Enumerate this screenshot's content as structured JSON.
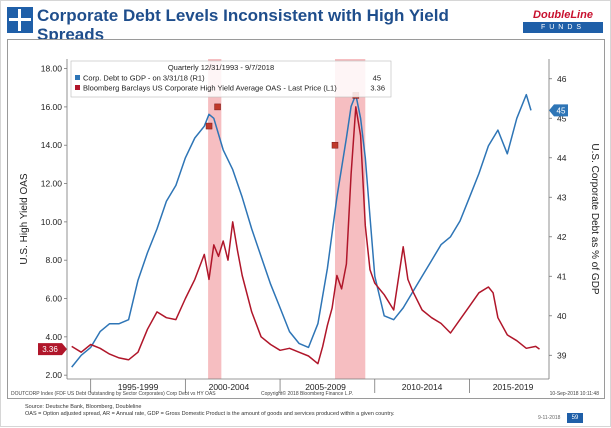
{
  "slide": {
    "title": "Corporate Debt Levels Inconsistent with High Yield Spreads",
    "logo_top": "DoubleLine",
    "logo_bottom": "FUNDS",
    "footer_source": "Source: Deutsche Bank, Bloomberg, Doubleline",
    "footer_defs": "OAS = Option adjusted spread, AR = Annual rate, GDP = Gross Domestic Product is the amount of goods and services produced within a given country.",
    "page_ref": "9-11-2018",
    "page_number": "59"
  },
  "chart_data": {
    "type": "line",
    "legend_header": "Quarterly 12/31/1993 - 9/7/2018",
    "x_range": [
      1993.75,
      2019.2
    ],
    "x_period_labels": [
      {
        "label": "1995-1999",
        "x": 1997.5
      },
      {
        "label": "2000-2004",
        "x": 2002.3
      },
      {
        "label": "2005-2009",
        "x": 2007.4
      },
      {
        "label": "2010-2014",
        "x": 2012.5
      },
      {
        "label": "2015-2019",
        "x": 2017.3
      }
    ],
    "y_left": {
      "label": "U.S. High Yield OAS",
      "range": [
        1.8,
        18.5
      ],
      "ticks": [
        "2.00",
        "4.00",
        "6.00",
        "8.00",
        "10.00",
        "12.00",
        "14.00",
        "16.00",
        "18.00"
      ]
    },
    "y_right": {
      "label": "U.S. Corporate Debt as % of GDP",
      "range": [
        38.4,
        46.5
      ],
      "ticks": [
        "39",
        "40",
        "41",
        "42",
        "43",
        "44",
        "45",
        "46"
      ]
    },
    "shaded_periods": [
      [
        2001.2,
        2001.9
      ],
      [
        2007.9,
        2009.5
      ]
    ],
    "series": [
      {
        "name": "Corp. Debt to GDP - on 3/31/18 (R1)",
        "legend_value": "45",
        "axis": "right",
        "color": "#2e75b6",
        "last_value_label": "45",
        "x": [
          1994.0,
          1994.5,
          1995.0,
          1995.5,
          1996.0,
          1996.5,
          1997.0,
          1997.5,
          1998.0,
          1998.5,
          1999.0,
          1999.5,
          2000.0,
          2000.5,
          2001.0,
          2001.25,
          2001.5,
          2001.75,
          2002.0,
          2002.5,
          2003.0,
          2003.5,
          2004.0,
          2004.5,
          2005.0,
          2005.5,
          2006.0,
          2006.5,
          2007.0,
          2007.5,
          2008.0,
          2008.5,
          2008.75,
          2009.0,
          2009.25,
          2009.5,
          2009.75,
          2010.0,
          2010.5,
          2011.0,
          2011.5,
          2012.0,
          2012.5,
          2013.0,
          2013.5,
          2014.0,
          2014.5,
          2015.0,
          2015.5,
          2016.0,
          2016.5,
          2017.0,
          2017.5,
          2018.0,
          2018.25
        ],
        "values": [
          38.7,
          39.0,
          39.2,
          39.6,
          39.8,
          39.8,
          39.9,
          40.9,
          41.6,
          42.2,
          42.9,
          43.3,
          44.0,
          44.5,
          44.8,
          45.1,
          45.0,
          44.6,
          44.2,
          43.7,
          43.0,
          42.2,
          41.5,
          40.8,
          40.2,
          39.6,
          39.3,
          39.2,
          39.8,
          41.2,
          43.0,
          44.5,
          45.3,
          45.6,
          45.0,
          44.0,
          42.5,
          41.0,
          40.0,
          39.9,
          40.2,
          40.6,
          41.0,
          41.4,
          41.8,
          42.0,
          42.4,
          43.0,
          43.6,
          44.3,
          44.7,
          44.1,
          45.0,
          45.6,
          45.2
        ]
      },
      {
        "name": "Bloomberg Barclays US Corporate High Yield Average OAS - Last Price (L1)",
        "legend_value": "3.36",
        "axis": "left",
        "color": "#b0162a",
        "last_value_label": "3.36",
        "x": [
          1994.0,
          1994.5,
          1995.0,
          1995.5,
          1996.0,
          1996.5,
          1997.0,
          1997.5,
          1998.0,
          1998.5,
          1999.0,
          1999.5,
          2000.0,
          2000.5,
          2001.0,
          2001.25,
          2001.5,
          2001.75,
          2002.0,
          2002.25,
          2002.5,
          2002.75,
          2003.0,
          2003.5,
          2004.0,
          2004.5,
          2005.0,
          2005.5,
          2006.0,
          2006.5,
          2007.0,
          2007.25,
          2007.5,
          2007.75,
          2008.0,
          2008.25,
          2008.5,
          2008.75,
          2009.0,
          2009.25,
          2009.5,
          2009.75,
          2010.0,
          2010.5,
          2011.0,
          2011.5,
          2011.75,
          2012.0,
          2012.5,
          2013.0,
          2013.5,
          2014.0,
          2014.5,
          2015.0,
          2015.5,
          2016.0,
          2016.25,
          2016.5,
          2017.0,
          2017.5,
          2018.0,
          2018.5,
          2018.7
        ],
        "values": [
          3.5,
          3.2,
          3.6,
          3.4,
          3.1,
          2.9,
          2.8,
          3.2,
          4.4,
          5.3,
          5.0,
          4.9,
          6.0,
          7.0,
          8.3,
          7.0,
          8.8,
          8.2,
          9.0,
          8.0,
          10.0,
          8.5,
          7.2,
          5.3,
          4.0,
          3.6,
          3.3,
          3.4,
          3.2,
          3.0,
          2.6,
          3.5,
          4.6,
          5.5,
          7.2,
          6.5,
          7.8,
          12.5,
          16.0,
          14.5,
          9.8,
          7.5,
          6.8,
          6.2,
          5.4,
          8.7,
          7.0,
          6.4,
          5.4,
          5.0,
          4.7,
          4.2,
          4.9,
          5.6,
          6.3,
          6.6,
          6.3,
          5.0,
          4.1,
          3.8,
          3.4,
          3.5,
          3.36
        ]
      }
    ],
    "footer_left": "DOUTCORP Index (FDF US Debt Outstanding by Sector Corporates) Corp Debt vs HY OAS",
    "footer_center": "Copyright© 2018 Bloomberg Finance L.P.",
    "footer_right": "10-Sep-2018 10:11:48"
  }
}
